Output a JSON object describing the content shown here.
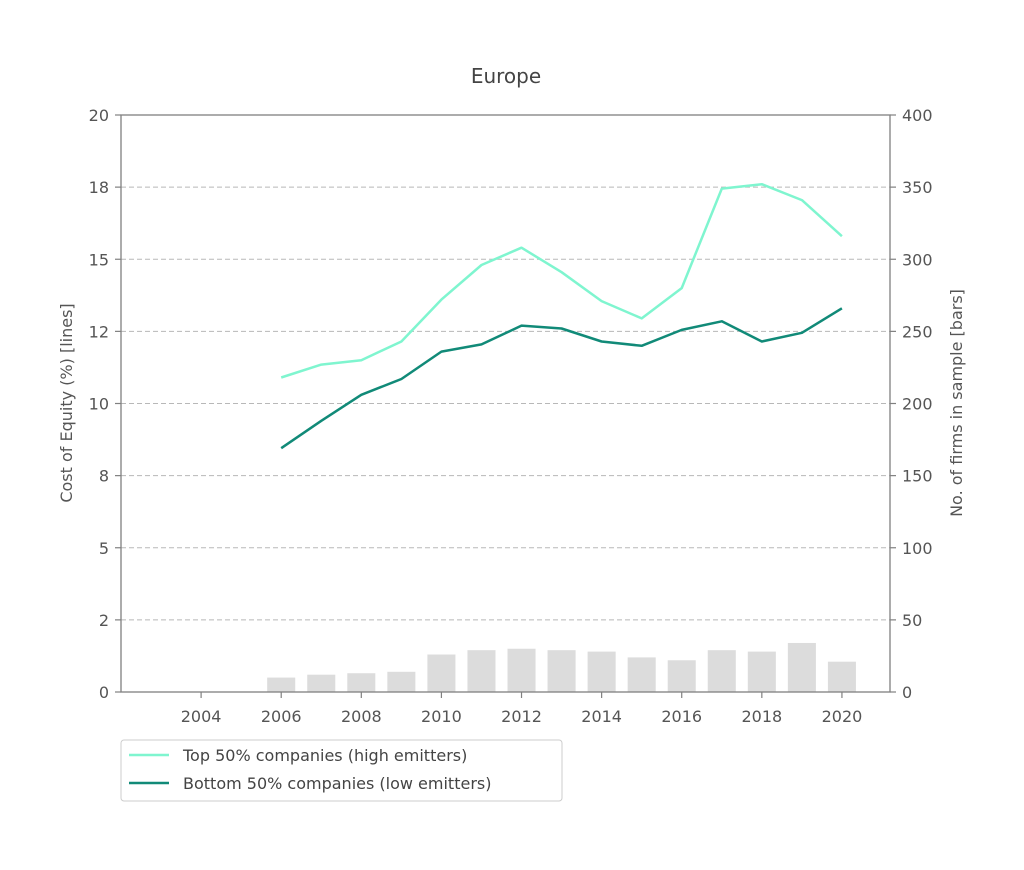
{
  "chart_data": {
    "type": "line",
    "title": "Europe",
    "ylabel_left": "Cost of Equity (%) [lines]",
    "ylabel_right": "No. of firms in sample [bars]",
    "xlim": [
      2002,
      2021.2
    ],
    "ylim_left": [
      0,
      20
    ],
    "ylim_right": [
      0,
      400
    ],
    "x_ticks": [
      2004,
      2006,
      2008,
      2010,
      2012,
      2014,
      2016,
      2018,
      2020
    ],
    "y_left_ticks": [
      0,
      2.5,
      5,
      7.5,
      10,
      12.5,
      15,
      17.5,
      20
    ],
    "y_left_tick_labels": [
      "0",
      "2",
      "5",
      "8",
      "10",
      "12",
      "15",
      "18",
      "20"
    ],
    "y_right_ticks": [
      0,
      50,
      100,
      150,
      200,
      250,
      300,
      350,
      400
    ],
    "grid": "horizontal dashed",
    "legend_position": "bottom-left, below plot",
    "x": [
      2006,
      2007,
      2008,
      2009,
      2010,
      2011,
      2012,
      2013,
      2014,
      2015,
      2016,
      2017,
      2018,
      2019,
      2020
    ],
    "series": [
      {
        "name": "Top 50% companies (high emitters)",
        "color": "#7ff5cf",
        "values": [
          10.9,
          11.35,
          11.5,
          12.15,
          13.6,
          14.8,
          15.4,
          14.55,
          13.55,
          12.95,
          14.0,
          17.45,
          17.6,
          17.05,
          15.8
        ]
      },
      {
        "name": "Bottom 50% companies (low emitters)",
        "color": "#118a78",
        "values": [
          8.45,
          9.4,
          10.3,
          10.85,
          11.8,
          12.05,
          12.7,
          12.6,
          12.15,
          12.0,
          12.55,
          12.85,
          12.15,
          12.45,
          13.3
        ]
      }
    ],
    "bars": {
      "name": "No. of firms in sample",
      "color": "#dcdcdc",
      "values": [
        10,
        12,
        13,
        14,
        26,
        29,
        30,
        29,
        28,
        24,
        22,
        29,
        28,
        34,
        21
      ]
    }
  }
}
